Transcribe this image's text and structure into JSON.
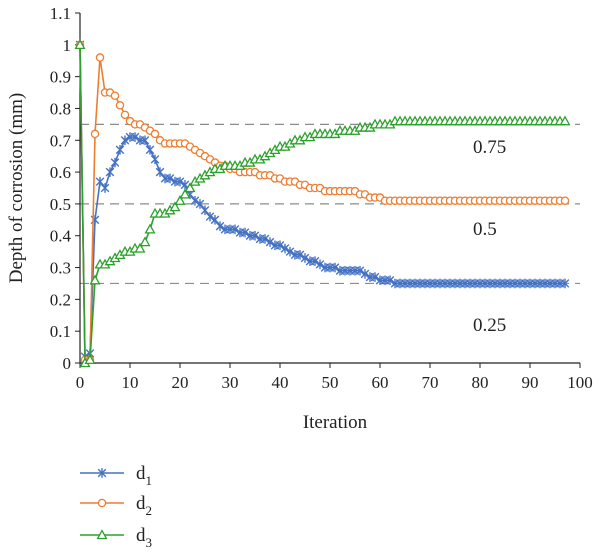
{
  "chart_data": {
    "type": "line",
    "title": "",
    "xlabel": "Iteration",
    "ylabel": "Depth of corrosion (mm)",
    "xlim": [
      0,
      100
    ],
    "ylim": [
      0,
      1.1
    ],
    "xticks": [
      0,
      10,
      20,
      30,
      40,
      50,
      60,
      70,
      80,
      90,
      100
    ],
    "yticks": [
      0,
      0.1,
      0.2,
      0.3,
      0.4,
      0.5,
      0.6,
      0.7,
      0.8,
      0.9,
      1,
      1.1
    ],
    "xtick_labels": [
      "0",
      "10",
      "20",
      "30",
      "40",
      "50",
      "60",
      "70",
      "80",
      "90",
      "100"
    ],
    "ytick_labels": [
      "0",
      "0.1",
      "0.2",
      "0.3",
      "0.4",
      "0.5",
      "0.6",
      "0.7",
      "0.8",
      "0.9",
      "1",
      "1.1"
    ],
    "reference_lines": [
      {
        "y": 0.75,
        "label": "0.75"
      },
      {
        "y": 0.5,
        "label": "0.5"
      },
      {
        "y": 0.25,
        "label": "0.25"
      }
    ],
    "legend_position": "bottom-left",
    "grid": false,
    "series": [
      {
        "name": "d",
        "subscript": "1",
        "color": "#4472C4",
        "marker": "star",
        "x": [
          0,
          1,
          2,
          3,
          4,
          5,
          6,
          7,
          8,
          9,
          10,
          11,
          12,
          13,
          14,
          15,
          16,
          17,
          18,
          19,
          20,
          21,
          22,
          23,
          24,
          25,
          26,
          27,
          28,
          29,
          30,
          31,
          32,
          33,
          34,
          35,
          36,
          37,
          38,
          39,
          40,
          41,
          42,
          43,
          44,
          45,
          46,
          47,
          48,
          49,
          50,
          51,
          52,
          53,
          54,
          55,
          56,
          57,
          58,
          59,
          60,
          61,
          62,
          63,
          64,
          65,
          66,
          67,
          68,
          69,
          70,
          71,
          72,
          73,
          74,
          75,
          76,
          77,
          78,
          79,
          80,
          81,
          82,
          83,
          84,
          85,
          86,
          87,
          88,
          89,
          90,
          91,
          92,
          93,
          94,
          95,
          96,
          97
        ],
        "values": [
          1.0,
          0.02,
          0.03,
          0.45,
          0.57,
          0.55,
          0.6,
          0.63,
          0.67,
          0.7,
          0.71,
          0.71,
          0.7,
          0.7,
          0.67,
          0.64,
          0.6,
          0.58,
          0.58,
          0.57,
          0.57,
          0.56,
          0.53,
          0.51,
          0.5,
          0.48,
          0.46,
          0.45,
          0.43,
          0.42,
          0.42,
          0.42,
          0.41,
          0.41,
          0.4,
          0.4,
          0.39,
          0.39,
          0.38,
          0.37,
          0.37,
          0.36,
          0.35,
          0.34,
          0.34,
          0.33,
          0.32,
          0.32,
          0.31,
          0.3,
          0.3,
          0.3,
          0.29,
          0.29,
          0.29,
          0.29,
          0.29,
          0.28,
          0.27,
          0.27,
          0.26,
          0.26,
          0.26,
          0.25,
          0.25,
          0.25,
          0.25,
          0.25,
          0.25,
          0.25,
          0.25,
          0.25,
          0.25,
          0.25,
          0.25,
          0.25,
          0.25,
          0.25,
          0.25,
          0.25,
          0.25,
          0.25,
          0.25,
          0.25,
          0.25,
          0.25,
          0.25,
          0.25,
          0.25,
          0.25,
          0.25,
          0.25,
          0.25,
          0.25,
          0.25,
          0.25,
          0.25,
          0.25
        ]
      },
      {
        "name": "d",
        "subscript": "2",
        "color": "#ED7D31",
        "marker": "circle",
        "x": [
          0,
          1,
          2,
          3,
          4,
          5,
          6,
          7,
          8,
          9,
          10,
          11,
          12,
          13,
          14,
          15,
          16,
          17,
          18,
          19,
          20,
          21,
          22,
          23,
          24,
          25,
          26,
          27,
          28,
          29,
          30,
          31,
          32,
          33,
          34,
          35,
          36,
          37,
          38,
          39,
          40,
          41,
          42,
          43,
          44,
          45,
          46,
          47,
          48,
          49,
          50,
          51,
          52,
          53,
          54,
          55,
          56,
          57,
          58,
          59,
          60,
          61,
          62,
          63,
          64,
          65,
          66,
          67,
          68,
          69,
          70,
          71,
          72,
          73,
          74,
          75,
          76,
          77,
          78,
          79,
          80,
          81,
          82,
          83,
          84,
          85,
          86,
          87,
          88,
          89,
          90,
          91,
          92,
          93,
          94,
          95,
          96,
          97
        ],
        "values": [
          1.0,
          0.01,
          0.01,
          0.72,
          0.96,
          0.85,
          0.85,
          0.84,
          0.81,
          0.78,
          0.76,
          0.75,
          0.75,
          0.74,
          0.73,
          0.72,
          0.7,
          0.69,
          0.69,
          0.69,
          0.69,
          0.69,
          0.68,
          0.67,
          0.66,
          0.65,
          0.64,
          0.63,
          0.62,
          0.62,
          0.61,
          0.61,
          0.6,
          0.6,
          0.6,
          0.6,
          0.59,
          0.59,
          0.59,
          0.58,
          0.58,
          0.57,
          0.57,
          0.57,
          0.56,
          0.56,
          0.55,
          0.55,
          0.55,
          0.54,
          0.54,
          0.54,
          0.54,
          0.54,
          0.54,
          0.54,
          0.53,
          0.53,
          0.52,
          0.52,
          0.52,
          0.51,
          0.51,
          0.51,
          0.51,
          0.51,
          0.51,
          0.51,
          0.51,
          0.51,
          0.51,
          0.51,
          0.51,
          0.51,
          0.51,
          0.51,
          0.51,
          0.51,
          0.51,
          0.51,
          0.51,
          0.51,
          0.51,
          0.51,
          0.51,
          0.51,
          0.51,
          0.51,
          0.51,
          0.51,
          0.51,
          0.51,
          0.51,
          0.51,
          0.51,
          0.51,
          0.51,
          0.51
        ]
      },
      {
        "name": "d",
        "subscript": "3",
        "color": "#2CA02C",
        "marker": "triangle",
        "x": [
          0,
          1,
          2,
          3,
          4,
          5,
          6,
          7,
          8,
          9,
          10,
          11,
          12,
          13,
          14,
          15,
          16,
          17,
          18,
          19,
          20,
          21,
          22,
          23,
          24,
          25,
          26,
          27,
          28,
          29,
          30,
          31,
          32,
          33,
          34,
          35,
          36,
          37,
          38,
          39,
          40,
          41,
          42,
          43,
          44,
          45,
          46,
          47,
          48,
          49,
          50,
          51,
          52,
          53,
          54,
          55,
          56,
          57,
          58,
          59,
          60,
          61,
          62,
          63,
          64,
          65,
          66,
          67,
          68,
          69,
          70,
          71,
          72,
          73,
          74,
          75,
          76,
          77,
          78,
          79,
          80,
          81,
          82,
          83,
          84,
          85,
          86,
          87,
          88,
          89,
          90,
          91,
          92,
          93,
          94,
          95,
          96,
          97
        ],
        "values": [
          1.0,
          0.0,
          0.01,
          0.26,
          0.31,
          0.31,
          0.32,
          0.33,
          0.34,
          0.35,
          0.35,
          0.36,
          0.36,
          0.38,
          0.42,
          0.47,
          0.47,
          0.47,
          0.48,
          0.49,
          0.51,
          0.53,
          0.55,
          0.57,
          0.58,
          0.59,
          0.6,
          0.61,
          0.61,
          0.62,
          0.62,
          0.62,
          0.62,
          0.63,
          0.63,
          0.64,
          0.64,
          0.65,
          0.66,
          0.67,
          0.68,
          0.68,
          0.69,
          0.7,
          0.7,
          0.71,
          0.71,
          0.72,
          0.72,
          0.72,
          0.72,
          0.72,
          0.73,
          0.73,
          0.73,
          0.73,
          0.74,
          0.74,
          0.74,
          0.75,
          0.75,
          0.75,
          0.75,
          0.76,
          0.76,
          0.76,
          0.76,
          0.76,
          0.76,
          0.76,
          0.76,
          0.76,
          0.76,
          0.76,
          0.76,
          0.76,
          0.76,
          0.76,
          0.76,
          0.76,
          0.76,
          0.76,
          0.76,
          0.76,
          0.76,
          0.76,
          0.76,
          0.76,
          0.76,
          0.76,
          0.76,
          0.76,
          0.76,
          0.76,
          0.76,
          0.76,
          0.76,
          0.76
        ]
      }
    ]
  }
}
